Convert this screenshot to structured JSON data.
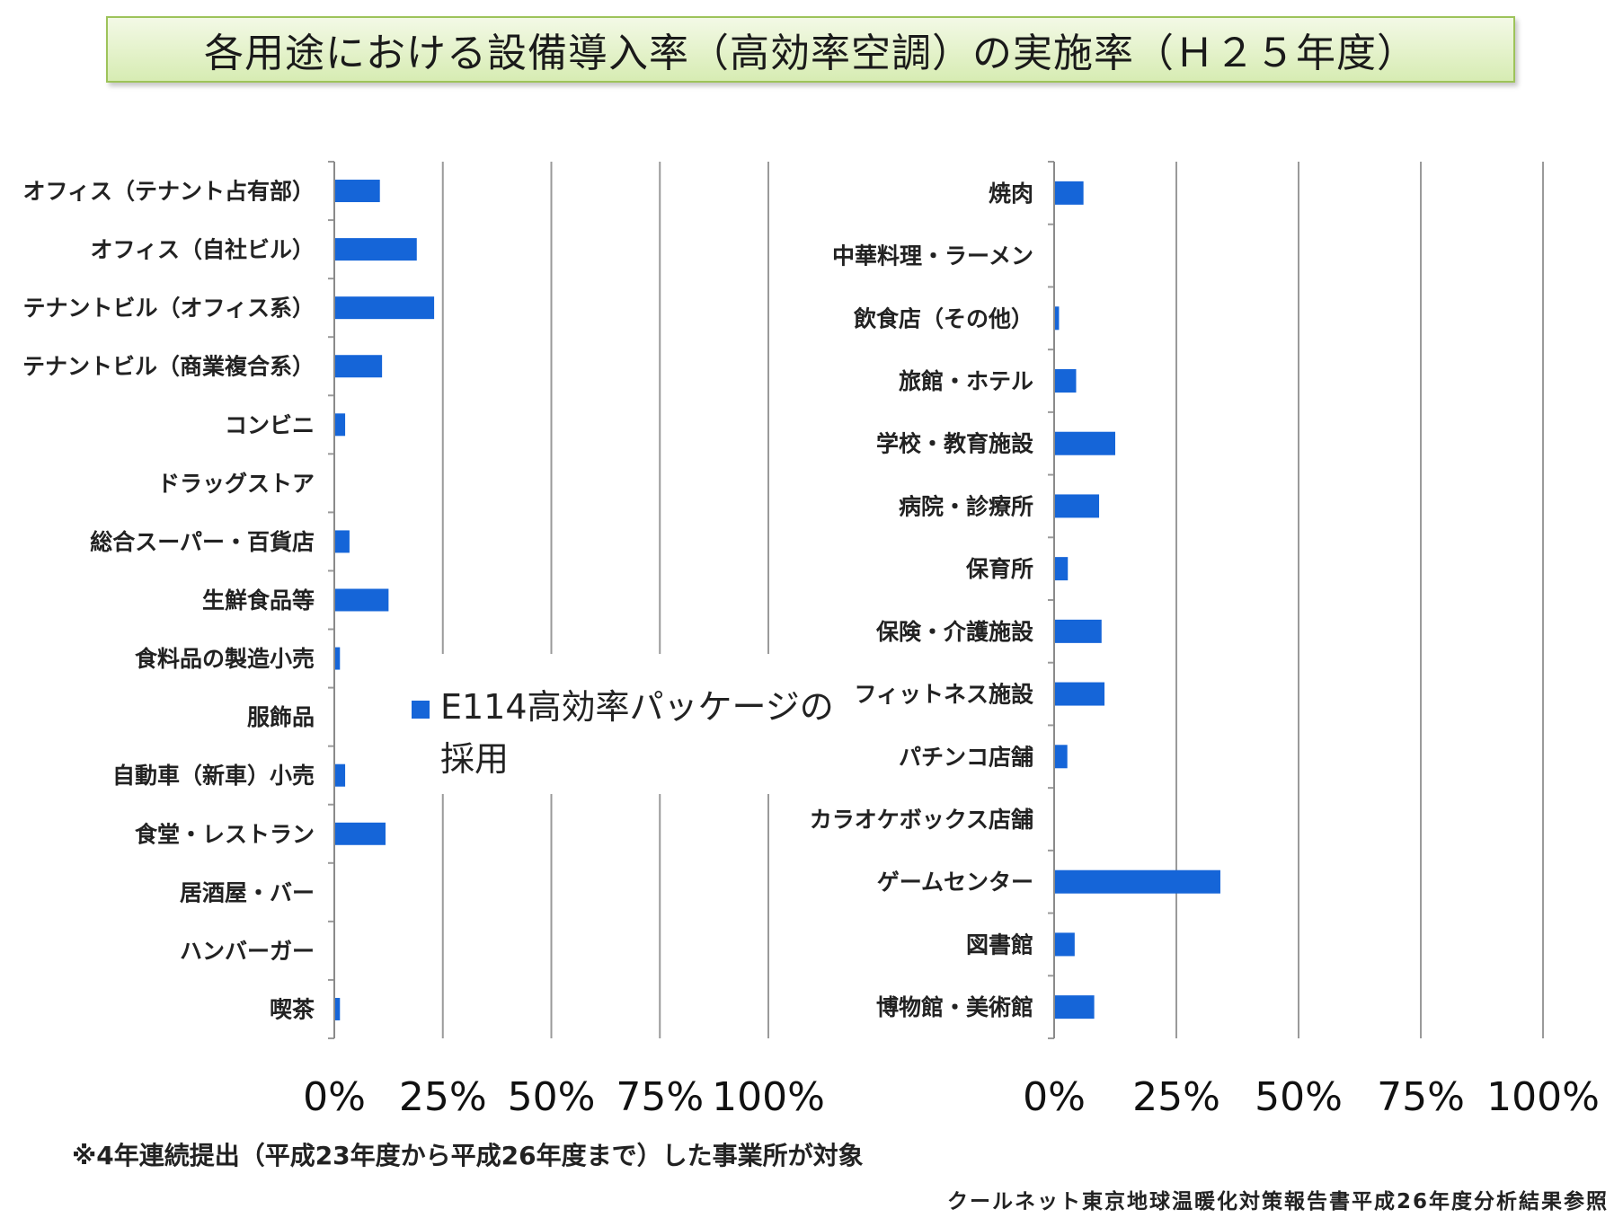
{
  "title": "各用途における設備導入率（高効率空調）の実施率（Ｈ２５年度）",
  "legend": {
    "label": "E114高効率パッケージの採用",
    "color": "#1565d8"
  },
  "chart_data": [
    {
      "type": "bar",
      "orientation": "horizontal",
      "title": "",
      "xlabel": "",
      "ylabel": "",
      "xlim": [
        0,
        100
      ],
      "x_tick_labels": [
        "0%",
        "25%",
        "50%",
        "75%",
        "100%"
      ],
      "grid": "vertical",
      "categories": [
        "オフィス（テナント占有部）",
        "オフィス（自社ビル）",
        "テナントビル（オフィス系）",
        "テナントビル（商業複合系）",
        "コンビニ",
        "ドラッグストア",
        "総合スーパー・百貨店",
        "生鮮食品等",
        "食料品の製造小売",
        "服飾品",
        "自動車（新車）小売",
        "食堂・レストラン",
        "居酒屋・バー",
        "ハンバーガー",
        "喫茶"
      ],
      "series": [
        {
          "name": "E114高効率パッケージの採用",
          "values": [
            10.5,
            19,
            23,
            11,
            2.5,
            0,
            3.5,
            12.5,
            1.3,
            0,
            2.5,
            11.8,
            0,
            0,
            1.3
          ]
        }
      ]
    },
    {
      "type": "bar",
      "orientation": "horizontal",
      "title": "",
      "xlabel": "",
      "ylabel": "",
      "xlim": [
        0,
        100
      ],
      "x_tick_labels": [
        "0%",
        "25%",
        "50%",
        "75%",
        "100%"
      ],
      "grid": "vertical",
      "categories": [
        "焼肉",
        "中華料理・ラーメン",
        "飲食店（その他）",
        "旅館・ホテル",
        "学校・教育施設",
        "病院・診療所",
        "保育所",
        "保険・介護施設",
        "フィットネス施設",
        "パチンコ店舗",
        "カラオケボックス店舗",
        "ゲームセンター",
        "図書館",
        "博物館・美術館"
      ],
      "series": [
        {
          "name": "E114高効率パッケージの採用",
          "values": [
            6,
            0,
            1,
            4.5,
            12.5,
            9.2,
            2.8,
            9.7,
            10.3,
            2.7,
            0,
            34,
            4.2,
            8.2
          ]
        }
      ]
    }
  ],
  "footnote": "※4年連続提出（平成23年度から平成26年度まで）した事業所が対象",
  "source": "クールネット東京地球温暖化対策報告書平成26年度分析結果参照"
}
